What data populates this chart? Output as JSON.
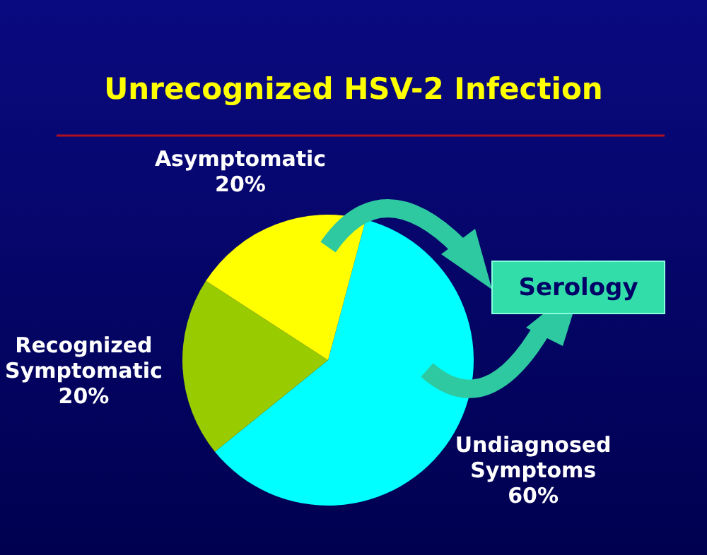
{
  "chart_data": {
    "type": "pie",
    "title": "Unrecognized HSV-2 Infection",
    "categories": [
      "Undiagnosed Symptoms",
      "Recognized Symptomatic",
      "Asymptomatic"
    ],
    "values": [
      60,
      20,
      20
    ],
    "colors": [
      "#00ffff",
      "#99cc00",
      "#ffff00"
    ],
    "value_labels": [
      "60%",
      "20%",
      "20%"
    ],
    "annotations": [
      "Serology"
    ]
  }
}
